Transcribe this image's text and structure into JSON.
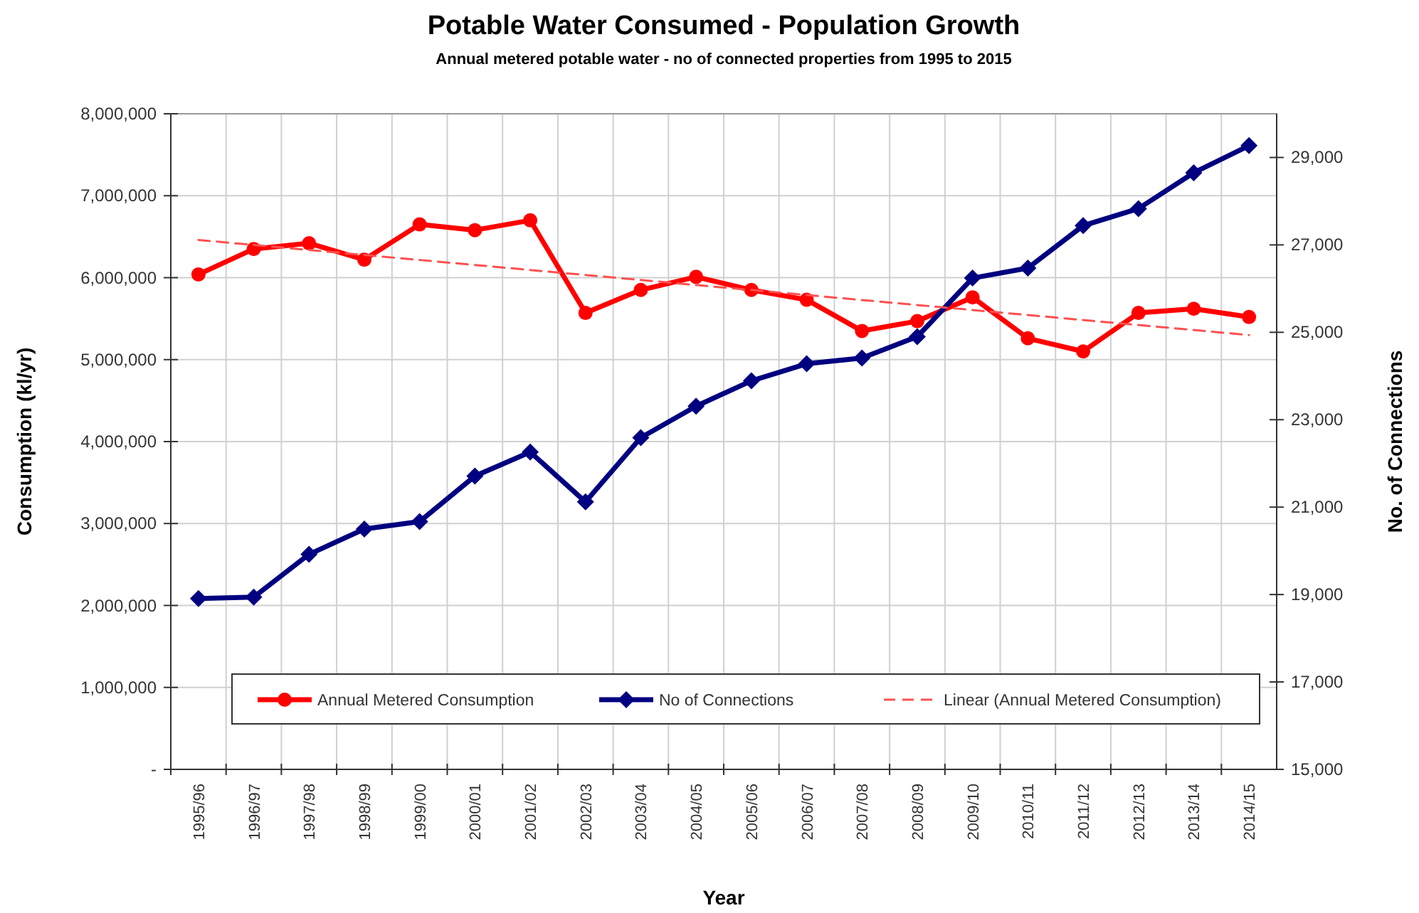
{
  "chart_data": {
    "type": "line",
    "title": "Potable Water Consumed - Population Growth",
    "subtitle": "Annual metered potable water  - no of connected properties from 1995 to 2015",
    "xlabel": "Year",
    "ylabel": "Consumption (kl/yr)",
    "y2label": "No. of Connections",
    "categories": [
      "1995/96",
      "1996/97",
      "1997/98",
      "1998/99",
      "1999/00",
      "2000/01",
      "2001/02",
      "2002/03",
      "2003/04",
      "2004/05",
      "2005/06",
      "2006/07",
      "2007/08",
      "2008/09",
      "2009/10",
      "2010/11",
      "2011/12",
      "2012/13",
      "2013/14",
      "2014/15"
    ],
    "series": [
      {
        "name": "Annual Metered Consumption",
        "color": "#ff0000",
        "marker": "circle",
        "line_style": "solid",
        "values": [
          6040000,
          6350000,
          6420000,
          6220000,
          6650000,
          6580000,
          6700000,
          5570000,
          5850000,
          6010000,
          5850000,
          5730000,
          5350000,
          5470000,
          5760000,
          5260000,
          5100000,
          5570000,
          5620000,
          5520000
        ]
      },
      {
        "name": "No of Connections",
        "color": "#000080",
        "marker": "diamond",
        "line_style": "solid",
        "axis": "y2",
        "values": [
          18910,
          18940,
          19920,
          20500,
          20670,
          21710,
          22260,
          21120,
          22590,
          23310,
          23890,
          24280,
          24410,
          24900,
          26240,
          26470,
          27440,
          27830,
          28650,
          29270
        ]
      },
      {
        "name": "Linear (Annual Metered Consumption)",
        "color": "#ff5050",
        "marker": "none",
        "line_style": "dashed",
        "x": [
          "1995/96",
          "2014/15"
        ],
        "values": [
          6460000,
          5300000
        ]
      }
    ],
    "ylim": [
      0,
      8000000
    ],
    "yticks": [
      {
        "value": 0,
        "label": "-"
      },
      {
        "value": 1000000,
        "label": "1,000,000"
      },
      {
        "value": 2000000,
        "label": "2,000,000"
      },
      {
        "value": 3000000,
        "label": "3,000,000"
      },
      {
        "value": 4000000,
        "label": "4,000,000"
      },
      {
        "value": 5000000,
        "label": "5,000,000"
      },
      {
        "value": 6000000,
        "label": "6,000,000"
      },
      {
        "value": 7000000,
        "label": "7,000,000"
      },
      {
        "value": 8000000,
        "label": "8,000,000"
      }
    ],
    "y2lim": [
      15000,
      30000
    ],
    "y2ticks": [
      {
        "value": 15000,
        "label": "15,000"
      },
      {
        "value": 17000,
        "label": "17,000"
      },
      {
        "value": 19000,
        "label": "19,000"
      },
      {
        "value": 21000,
        "label": "21,000"
      },
      {
        "value": 23000,
        "label": "23,000"
      },
      {
        "value": 25000,
        "label": "25,000"
      },
      {
        "value": 27000,
        "label": "27,000"
      },
      {
        "value": 29000,
        "label": "29,000"
      }
    ],
    "grid": true,
    "legend": "bottom"
  }
}
